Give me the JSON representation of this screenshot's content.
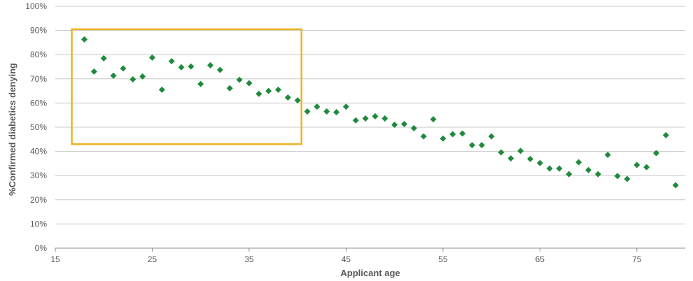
{
  "chart_data": {
    "type": "scatter",
    "title": "",
    "xlabel": "Applicant age",
    "ylabel": "%Confirmed diabetics denying",
    "xlim": [
      15,
      80
    ],
    "ylim": [
      0,
      100
    ],
    "x_ticks": [
      15,
      25,
      35,
      45,
      55,
      65,
      75
    ],
    "x_tick_labels": [
      "15",
      "25",
      "35",
      "45",
      "55",
      "65",
      "75"
    ],
    "y_ticks": [
      0,
      10,
      20,
      30,
      40,
      50,
      60,
      70,
      80,
      90,
      100
    ],
    "y_tick_labels": [
      "0%",
      "10%",
      "20%",
      "30%",
      "40%",
      "50%",
      "60%",
      "70%",
      "80%",
      "90%",
      "100%"
    ],
    "grid": "horizontal",
    "marker": "diamond",
    "color": "#1e8a3c",
    "highlight": {
      "shape": "rectangle",
      "color": "#f0b323",
      "x_range": [
        16.7,
        40.4
      ],
      "y_range": [
        43,
        90.5
      ]
    },
    "series": [
      {
        "x": [
          18,
          19,
          20,
          21,
          22,
          23,
          24,
          25,
          26,
          27,
          28,
          29,
          30,
          31,
          32,
          33,
          34,
          35,
          36,
          37,
          38,
          39,
          40,
          41,
          42,
          43,
          44,
          45,
          46,
          47,
          48,
          49,
          50,
          51,
          52,
          53,
          54,
          55,
          56,
          57,
          58,
          59,
          60,
          61,
          62,
          63,
          64,
          65,
          66,
          67,
          68,
          69,
          70,
          71,
          72,
          73,
          74,
          75,
          76,
          77,
          78,
          79
        ],
        "y": [
          86.3,
          73,
          78.5,
          71.3,
          74.3,
          69.8,
          71,
          78.8,
          65.5,
          77.3,
          74.8,
          75.1,
          67.9,
          75.6,
          73.7,
          66.1,
          69.6,
          68.2,
          63.8,
          65,
          65.5,
          62.3,
          61.1,
          56.5,
          58.5,
          56.5,
          56.2,
          58.5,
          52.8,
          53.6,
          54.5,
          53.6,
          51,
          51.3,
          49.6,
          46.2,
          53.3,
          45.3,
          47.1,
          47.4,
          42.6,
          42.6,
          46.2,
          39.6,
          37.1,
          40.2,
          36.9,
          35.2,
          32.9,
          32.9,
          30.6,
          35.5,
          32.3,
          30.6,
          38.6,
          29.8,
          28.6,
          34.4,
          33.5,
          39.3,
          46.7,
          26
        ]
      }
    ]
  }
}
